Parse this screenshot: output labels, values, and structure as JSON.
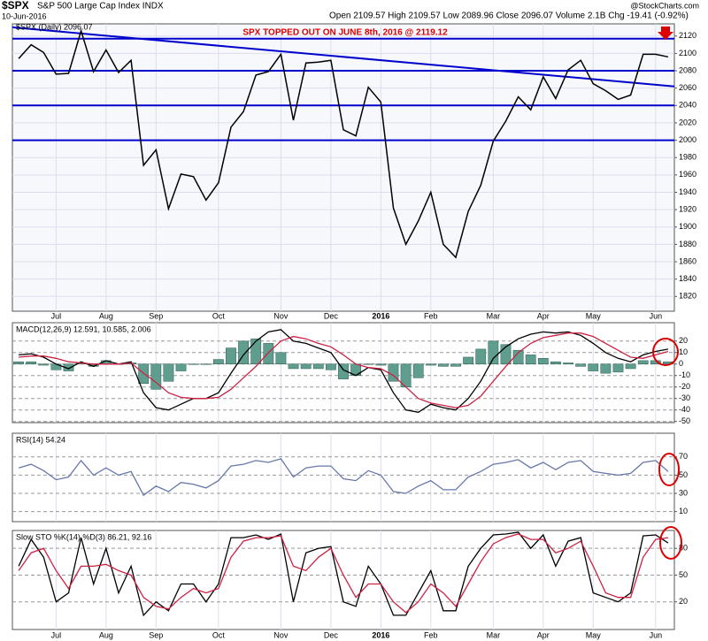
{
  "chart_data": [
    {
      "type": "line",
      "title": "$SPX",
      "subtitle": "S&P 500 Large Cap Index INDX",
      "date": "10-Jun-2016",
      "quote": "Open 2109.57 High 2109.57 Low 2089.96 Close 2096.07 Volume 2.1B Chg -19.41 (-0.92%)",
      "source": "@StockCharts.com",
      "legend_label": "$SPX (Daily) 2096.07",
      "annotation": "SPX TOPPED OUT ON JUNE 8th, 2016 @  2119.12",
      "categories": [
        null,
        null,
        null,
        "Jul",
        null,
        null,
        null,
        "Aug",
        null,
        null,
        null,
        "Sep",
        null,
        null,
        null,
        null,
        "Oct",
        null,
        null,
        null,
        null,
        "Nov",
        null,
        null,
        null,
        "Dec",
        null,
        null,
        null,
        "2016",
        null,
        null,
        null,
        "Feb",
        null,
        null,
        null,
        null,
        "Mar",
        null,
        null,
        null,
        "Apr",
        null,
        null,
        null,
        "May",
        null,
        null,
        null,
        null,
        "Jun",
        null
      ],
      "series": [
        {
          "name": "$SPX",
          "color": "#000000",
          "style": "line",
          "values": [
            2094,
            2110,
            2101,
            2076,
            2077,
            2126,
            2079,
            2104,
            2078,
            2092,
            1971,
            1989,
            1921,
            1961,
            1958,
            1931,
            1951,
            2015,
            2033,
            2075,
            2079,
            2099,
            2023,
            2089,
            2090,
            2092,
            2012,
            2005,
            2061,
            2044,
            1922,
            1880,
            1907,
            1940,
            1880,
            1865,
            1918,
            1948,
            1999,
            2022,
            2050,
            2035,
            2073,
            2048,
            2081,
            2092,
            2065,
            2057,
            2047,
            2052,
            2099,
            2099,
            2096
          ]
        }
      ],
      "hlines": [
        2117,
        2080,
        2040,
        2000
      ],
      "hline_color": "#0000cc",
      "trendline": [
        2130,
        2062
      ],
      "ylim": [
        1803,
        2134
      ],
      "yticks": [
        1820,
        1840,
        1860,
        1880,
        1900,
        1920,
        1940,
        1960,
        1980,
        2000,
        2020,
        2040,
        2060,
        2080,
        2100,
        2120
      ],
      "grid": true
    },
    {
      "type": "line",
      "title": "MACD(12,26,9) 12.591, 10.585, 2.006",
      "series": [
        {
          "name": "Histogram",
          "color": "#5f9e8f",
          "style": "histogram",
          "values": [
            2,
            2,
            -1,
            -5,
            -6,
            1,
            -2,
            3,
            0,
            1,
            -17,
            -22,
            -15,
            -6,
            0,
            0,
            4,
            14,
            20,
            22,
            18,
            10,
            -4,
            -4,
            -4,
            -5,
            -13,
            -10,
            0,
            -1,
            -15,
            -20,
            -12,
            -1,
            -2,
            -2,
            6,
            13,
            20,
            17,
            12,
            8,
            5,
            2,
            1,
            -2,
            -6,
            -8,
            -7,
            -4,
            3,
            3,
            2
          ]
        },
        {
          "name": "MACD",
          "color": "#000000",
          "style": "line",
          "values": [
            8,
            9,
            6,
            0,
            -4,
            2,
            -2,
            3,
            0,
            2,
            -25,
            -38,
            -40,
            -35,
            -30,
            -30,
            -25,
            -8,
            8,
            20,
            28,
            30,
            20,
            18,
            14,
            10,
            -5,
            -10,
            -3,
            -5,
            -25,
            -40,
            -42,
            -35,
            -38,
            -40,
            -30,
            -15,
            5,
            15,
            22,
            26,
            28,
            27,
            28,
            25,
            18,
            10,
            5,
            2,
            8,
            11,
            13
          ]
        },
        {
          "name": "Signal",
          "color": "#cc2244",
          "style": "line",
          "values": [
            6,
            7,
            7,
            5,
            2,
            1,
            0,
            0,
            0,
            1,
            -8,
            -16,
            -25,
            -29,
            -30,
            -30,
            -29,
            -22,
            -12,
            -2,
            10,
            20,
            24,
            22,
            18,
            15,
            8,
            0,
            -3,
            -4,
            -10,
            -20,
            -30,
            -34,
            -36,
            -38,
            -36,
            -28,
            -15,
            -2,
            10,
            18,
            23,
            25,
            27,
            27,
            24,
            18,
            12,
            6,
            5,
            8,
            11
          ]
        }
      ],
      "ylim": [
        -51,
        36
      ],
      "yticks": [
        20,
        10,
        0,
        -10,
        -20,
        -30,
        -40,
        -50
      ],
      "grid": true
    },
    {
      "type": "line",
      "title": "RSI(14) 54.24",
      "series": [
        {
          "name": "RSI",
          "color": "#6677aa",
          "style": "line",
          "values": [
            58,
            62,
            55,
            45,
            48,
            66,
            50,
            58,
            50,
            54,
            28,
            38,
            32,
            42,
            40,
            36,
            44,
            60,
            62,
            66,
            64,
            68,
            48,
            58,
            60,
            60,
            46,
            44,
            55,
            50,
            32,
            30,
            38,
            44,
            34,
            34,
            48,
            54,
            62,
            64,
            67,
            58,
            64,
            56,
            64,
            66,
            54,
            52,
            50,
            52,
            64,
            66,
            54
          ]
        }
      ],
      "ylim": [
        -1,
        96
      ],
      "yticks": [
        10,
        30,
        50,
        70
      ],
      "grid": true
    },
    {
      "type": "line",
      "title": "Slow STO %K(14) %D(3) 86.21, 92.16",
      "series": [
        {
          "name": "%K",
          "color": "#000000",
          "style": "line",
          "values": [
            60,
            90,
            70,
            20,
            30,
            92,
            40,
            80,
            30,
            60,
            5,
            20,
            10,
            40,
            40,
            20,
            40,
            92,
            92,
            95,
            90,
            96,
            20,
            75,
            80,
            82,
            20,
            15,
            60,
            40,
            5,
            5,
            30,
            55,
            10,
            10,
            60,
            80,
            95,
            96,
            98,
            80,
            95,
            60,
            88,
            92,
            30,
            25,
            20,
            30,
            94,
            95,
            86
          ]
        },
        {
          "name": "%D",
          "color": "#cc2244",
          "style": "line",
          "values": [
            55,
            75,
            80,
            55,
            35,
            60,
            60,
            62,
            55,
            50,
            25,
            15,
            12,
            25,
            35,
            30,
            35,
            70,
            88,
            92,
            92,
            94,
            60,
            55,
            70,
            80,
            50,
            25,
            40,
            40,
            20,
            8,
            20,
            40,
            30,
            15,
            40,
            65,
            85,
            92,
            96,
            90,
            90,
            75,
            80,
            88,
            60,
            30,
            25,
            25,
            70,
            90,
            92
          ]
        }
      ],
      "ylim": [
        -11,
        100
      ],
      "yticks": [
        20,
        50,
        80
      ],
      "grid": true
    }
  ]
}
